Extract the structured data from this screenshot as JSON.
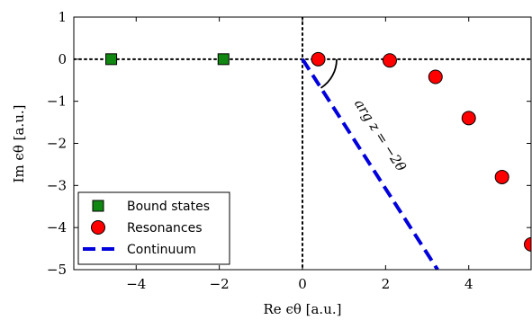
{
  "chart_data": {
    "type": "scatter",
    "xlabel": "Re ϵθ [a.u.]",
    "ylabel": "Im ϵθ [a.u.]",
    "xlim": [
      -5.5,
      5.5
    ],
    "ylim": [
      -5,
      1
    ],
    "xticks": [
      "−4",
      "−2",
      "0",
      "2",
      "4"
    ],
    "xtick_values": [
      -4,
      -2,
      0,
      2,
      4
    ],
    "yticks": [
      "1",
      "0",
      "−1",
      "−2",
      "−3",
      "−4",
      "−5"
    ],
    "ytick_values": [
      1,
      0,
      -1,
      -2,
      -3,
      -4,
      -5
    ],
    "grid": false,
    "reference_lines": {
      "x0": "dotted",
      "y0": "dotted"
    },
    "legend_position": "bottom-left",
    "series": [
      {
        "name": "Bound states",
        "marker": "square",
        "color": "#118811",
        "x": [
          -4.6,
          -1.9
        ],
        "y": [
          0,
          0
        ]
      },
      {
        "name": "Resonances",
        "marker": "circle",
        "color": "#ff0000",
        "x": [
          0.38,
          2.1,
          3.2,
          4.0,
          4.8,
          5.5
        ],
        "y": [
          0.0,
          -0.03,
          -0.42,
          -1.4,
          -2.8,
          -4.4
        ]
      },
      {
        "name": "Continuum",
        "marker": "dashed-line",
        "color": "#0000dd",
        "x": [
          0,
          3.25
        ],
        "y": [
          0,
          -5
        ]
      }
    ],
    "annotation": {
      "text": "arg z = −2θ",
      "anchor_x": 0,
      "anchor_y": 0
    }
  }
}
